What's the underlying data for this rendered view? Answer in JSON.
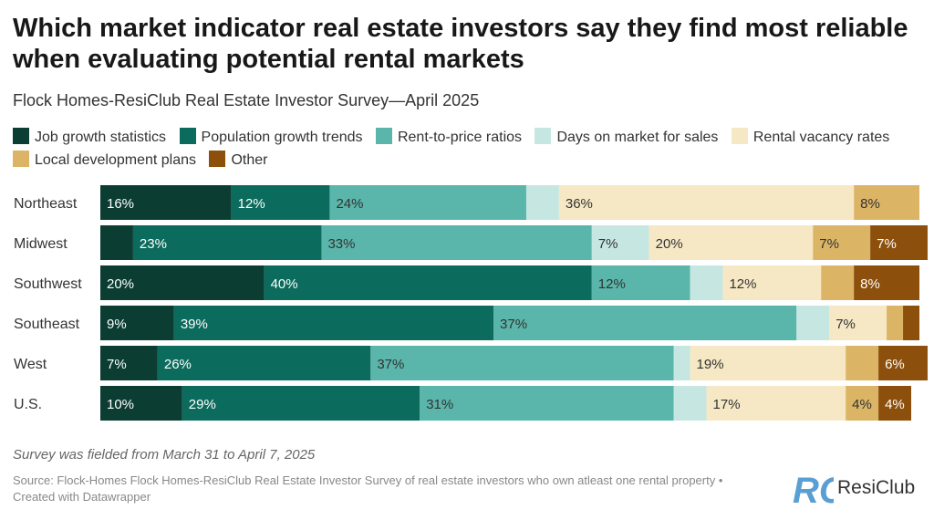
{
  "title": "Which market indicator real estate investors say they find most reliable when evaluating potential rental markets",
  "subtitle": "Flock Homes-ResiClub Real Estate Investor Survey—April 2025",
  "note": "Survey was fielded from March 31 to April 7, 2025",
  "source": "Source: Flock-Homes Flock Homes-ResiClub Real Estate Investor Survey of real estate investors who own atleast one rental property • Created with Datawrapper",
  "logo": {
    "text": "ResiClub",
    "mark": "RC",
    "mark_color": "#5a9fd4"
  },
  "chart_data": {
    "type": "bar",
    "orientation": "horizontal",
    "stacked": true,
    "title": "Which market indicator real estate investors say they find most reliable when evaluating potential rental markets",
    "subtitle": "Flock Homes-ResiClub Real Estate Investor Survey—April 2025",
    "categories": [
      "Northeast",
      "Midwest",
      "Southwest",
      "Southeast",
      "West",
      "U.S."
    ],
    "xlim": [
      0,
      100
    ],
    "unit": "%",
    "legend_position": "top",
    "grid": false,
    "series": [
      {
        "name": "Job growth statistics",
        "color": "#0b3d33",
        "values": [
          16,
          4,
          20,
          9,
          7,
          10
        ],
        "labels": [
          "16%",
          "",
          "20%",
          "9%",
          "7%",
          "10%"
        ]
      },
      {
        "name": "Population growth trends",
        "color": "#0b6b5c",
        "values": [
          12,
          23,
          40,
          39,
          26,
          29
        ],
        "labels": [
          "12%",
          "23%",
          "40%",
          "39%",
          "26%",
          "29%"
        ]
      },
      {
        "name": "Rent-to-price ratios",
        "color": "#5ab5aa",
        "values": [
          24,
          33,
          12,
          37,
          37,
          31
        ],
        "labels": [
          "24%",
          "33%",
          "12%",
          "37%",
          "37%",
          "31%"
        ]
      },
      {
        "name": "Days on market for sales",
        "color": "#c6e7e1",
        "values": [
          4,
          7,
          4,
          4,
          2,
          4
        ],
        "labels": [
          "",
          "7%",
          "",
          "",
          "",
          ""
        ]
      },
      {
        "name": "Rental vacancy rates",
        "color": "#f6e8c4",
        "values": [
          36,
          20,
          12,
          7,
          19,
          17
        ],
        "labels": [
          "36%",
          "20%",
          "12%",
          "7%",
          "19%",
          "17%"
        ]
      },
      {
        "name": "Local development plans",
        "color": "#dbb565",
        "values": [
          8,
          7,
          4,
          2,
          4,
          4
        ],
        "labels": [
          "8%",
          "7%",
          "",
          "",
          "",
          "4%"
        ]
      },
      {
        "name": "Other",
        "color": "#8c4f0c",
        "values": [
          0,
          7,
          8,
          2,
          6,
          4
        ],
        "labels": [
          "",
          "7%",
          "8%",
          "",
          "6%",
          "4%"
        ]
      }
    ]
  }
}
